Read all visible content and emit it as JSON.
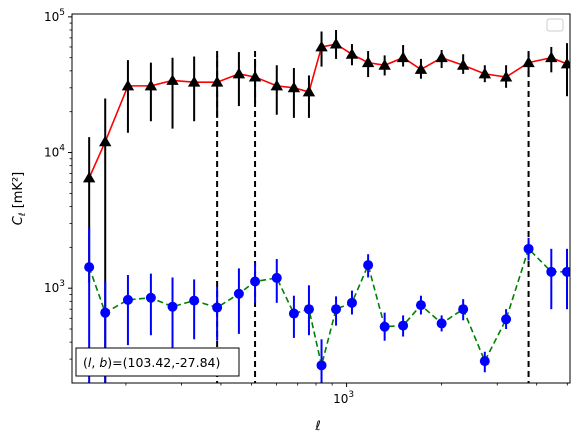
{
  "chart_data": {
    "type": "line",
    "title": "",
    "xlabel": "ℓ",
    "ylabel_main": "C",
    "ylabel_sub": "ℓ",
    "ylabel_unit": "[mK²]",
    "xscale": "log",
    "yscale": "log",
    "xlim": [
      135,
      5100
    ],
    "ylim": [
      200,
      105000
    ],
    "x_major_ticks": [
      {
        "value": 1000,
        "base": "10",
        "exp": "3"
      }
    ],
    "y_major_ticks": [
      {
        "value": 1000,
        "base": "10",
        "exp": "3"
      },
      {
        "value": 10000,
        "base": "10",
        "exp": "4"
      },
      {
        "value": 100000,
        "base": "10",
        "exp": "5"
      }
    ],
    "x_minor_ticks": [
      200,
      300,
      400,
      500,
      600,
      700,
      800,
      900,
      2000,
      3000,
      4000,
      5000
    ],
    "y_minor_ticks": [
      300,
      400,
      500,
      600,
      700,
      800,
      900,
      2000,
      3000,
      4000,
      5000,
      6000,
      7000,
      8000,
      9000,
      20000,
      30000,
      40000,
      50000,
      60000,
      70000,
      80000,
      90000
    ],
    "vlines": [
      {
        "x": 389,
        "ymin": 200,
        "ymax": 56000
      },
      {
        "x": 513,
        "ymin": 200,
        "ymax": 56000
      },
      {
        "x": 3770,
        "ymin": 200,
        "ymax": 56000
      }
    ],
    "legend": {
      "location": "upper right",
      "entries": []
    },
    "annotation": {
      "text": "(l, b)=(103.42,-27.84)",
      "location": "lower left"
    },
    "series": [
      {
        "style": "solid",
        "line_color": "#ff0000",
        "marker": "triangle",
        "marker_color": "#000000",
        "errorbar_color": "#000000",
        "points": [
          {
            "x": 153,
            "y": 6500,
            "lo": 1100,
            "hi": 13000
          },
          {
            "x": 172,
            "y": 12000,
            "lo": 200,
            "hi": 25000
          },
          {
            "x": 203,
            "y": 31000,
            "lo": 14000,
            "hi": 48000
          },
          {
            "x": 240,
            "y": 31000,
            "lo": 17000,
            "hi": 46000
          },
          {
            "x": 281,
            "y": 34000,
            "lo": 15000,
            "hi": 50000
          },
          {
            "x": 329,
            "y": 33000,
            "lo": 17000,
            "hi": 51000
          },
          {
            "x": 389,
            "y": 33000,
            "lo": 18000,
            "hi": 52000
          },
          {
            "x": 456,
            "y": 38000,
            "lo": 22000,
            "hi": 55000
          },
          {
            "x": 513,
            "y": 36000,
            "lo": 23000,
            "hi": 49000
          },
          {
            "x": 601,
            "y": 31000,
            "lo": 19000,
            "hi": 44000
          },
          {
            "x": 681,
            "y": 30000,
            "lo": 18000,
            "hi": 42000
          },
          {
            "x": 760,
            "y": 28000,
            "lo": 18000,
            "hi": 37000
          },
          {
            "x": 833,
            "y": 60000,
            "lo": 43000,
            "hi": 78000
          },
          {
            "x": 926,
            "y": 63000,
            "lo": 49000,
            "hi": 80000
          },
          {
            "x": 1040,
            "y": 53000,
            "lo": 44000,
            "hi": 63000
          },
          {
            "x": 1170,
            "y": 46000,
            "lo": 36000,
            "hi": 56000
          },
          {
            "x": 1320,
            "y": 44000,
            "lo": 37000,
            "hi": 52000
          },
          {
            "x": 1510,
            "y": 50000,
            "lo": 43000,
            "hi": 62000
          },
          {
            "x": 1720,
            "y": 41000,
            "lo": 35000,
            "hi": 49000
          },
          {
            "x": 2000,
            "y": 50000,
            "lo": 42000,
            "hi": 57000
          },
          {
            "x": 2340,
            "y": 44000,
            "lo": 38000,
            "hi": 53000
          },
          {
            "x": 2740,
            "y": 38000,
            "lo": 33000,
            "hi": 44000
          },
          {
            "x": 3200,
            "y": 36000,
            "lo": 30000,
            "hi": 44000
          },
          {
            "x": 3770,
            "y": 46000,
            "lo": 36000,
            "hi": 54000
          },
          {
            "x": 4450,
            "y": 50000,
            "lo": 39000,
            "hi": 60000
          },
          {
            "x": 4990,
            "y": 45000,
            "lo": 26000,
            "hi": 64000
          }
        ]
      },
      {
        "style": "dashed",
        "line_color": "#008000",
        "marker": "circle",
        "marker_color": "#0000ff",
        "errorbar_color": "#0000ff",
        "points": [
          {
            "x": 153,
            "y": 1430,
            "lo": 200,
            "hi": 2800
          },
          {
            "x": 172,
            "y": 660,
            "lo": 200,
            "hi": 1120
          },
          {
            "x": 203,
            "y": 820,
            "lo": 380,
            "hi": 1250
          },
          {
            "x": 240,
            "y": 850,
            "lo": 450,
            "hi": 1280
          },
          {
            "x": 281,
            "y": 730,
            "lo": 300,
            "hi": 1200
          },
          {
            "x": 329,
            "y": 810,
            "lo": 420,
            "hi": 1160
          },
          {
            "x": 389,
            "y": 720,
            "lo": 410,
            "hi": 1030
          },
          {
            "x": 456,
            "y": 910,
            "lo": 460,
            "hi": 1400
          },
          {
            "x": 513,
            "y": 1120,
            "lo": 780,
            "hi": 1540
          },
          {
            "x": 601,
            "y": 1190,
            "lo": 780,
            "hi": 1640
          },
          {
            "x": 681,
            "y": 650,
            "lo": 430,
            "hi": 880
          },
          {
            "x": 760,
            "y": 700,
            "lo": 450,
            "hi": 1050
          },
          {
            "x": 833,
            "y": 270,
            "lo": 200,
            "hi": 420
          },
          {
            "x": 926,
            "y": 700,
            "lo": 530,
            "hi": 870
          },
          {
            "x": 1040,
            "y": 780,
            "lo": 640,
            "hi": 960
          },
          {
            "x": 1170,
            "y": 1480,
            "lo": 1200,
            "hi": 1780
          },
          {
            "x": 1320,
            "y": 520,
            "lo": 410,
            "hi": 660
          },
          {
            "x": 1510,
            "y": 530,
            "lo": 440,
            "hi": 630
          },
          {
            "x": 1720,
            "y": 750,
            "lo": 640,
            "hi": 880
          },
          {
            "x": 2000,
            "y": 550,
            "lo": 480,
            "hi": 630
          },
          {
            "x": 2340,
            "y": 700,
            "lo": 580,
            "hi": 830
          },
          {
            "x": 2740,
            "y": 290,
            "lo": 240,
            "hi": 340
          },
          {
            "x": 3200,
            "y": 590,
            "lo": 500,
            "hi": 700
          },
          {
            "x": 3770,
            "y": 1950,
            "lo": 1600,
            "hi": 2350
          },
          {
            "x": 4450,
            "y": 1320,
            "lo": 700,
            "hi": 1950
          },
          {
            "x": 4990,
            "y": 1320,
            "lo": 700,
            "hi": 1950
          }
        ]
      }
    ]
  }
}
